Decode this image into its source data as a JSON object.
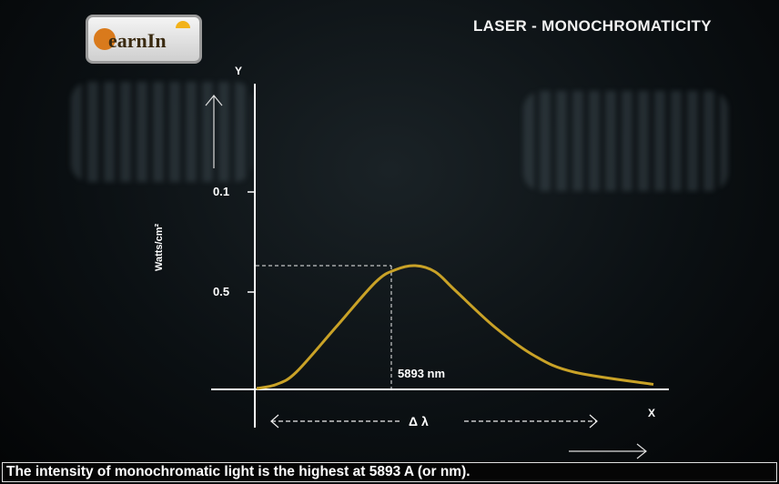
{
  "header": {
    "logo_text": "earnIn",
    "title": "LASER - MONOCHROMATICITY"
  },
  "chart_data": {
    "type": "line",
    "title": "",
    "xlabel": "X",
    "ylabel": "Y",
    "y_unit_label": "Watts/cm²",
    "y_ticks": [
      {
        "label": "0.1",
        "value": 0.1
      },
      {
        "label": "0.5",
        "value": 0.5
      }
    ],
    "peak_label": "5893 nm",
    "spread_label": "Δ λ",
    "series_color": "#c9a227",
    "series": [
      {
        "x": [
          0,
          0.05,
          0.1,
          0.2,
          0.3,
          0.35,
          0.4,
          0.45,
          0.5,
          0.6,
          0.7,
          0.8,
          1.0
        ],
        "values": [
          0,
          0.02,
          0.08,
          0.3,
          0.52,
          0.58,
          0.6,
          0.57,
          0.48,
          0.3,
          0.16,
          0.08,
          0.02
        ]
      }
    ]
  },
  "caption": "The intensity of monochromatic light is the highest at 5893 A (or nm)."
}
